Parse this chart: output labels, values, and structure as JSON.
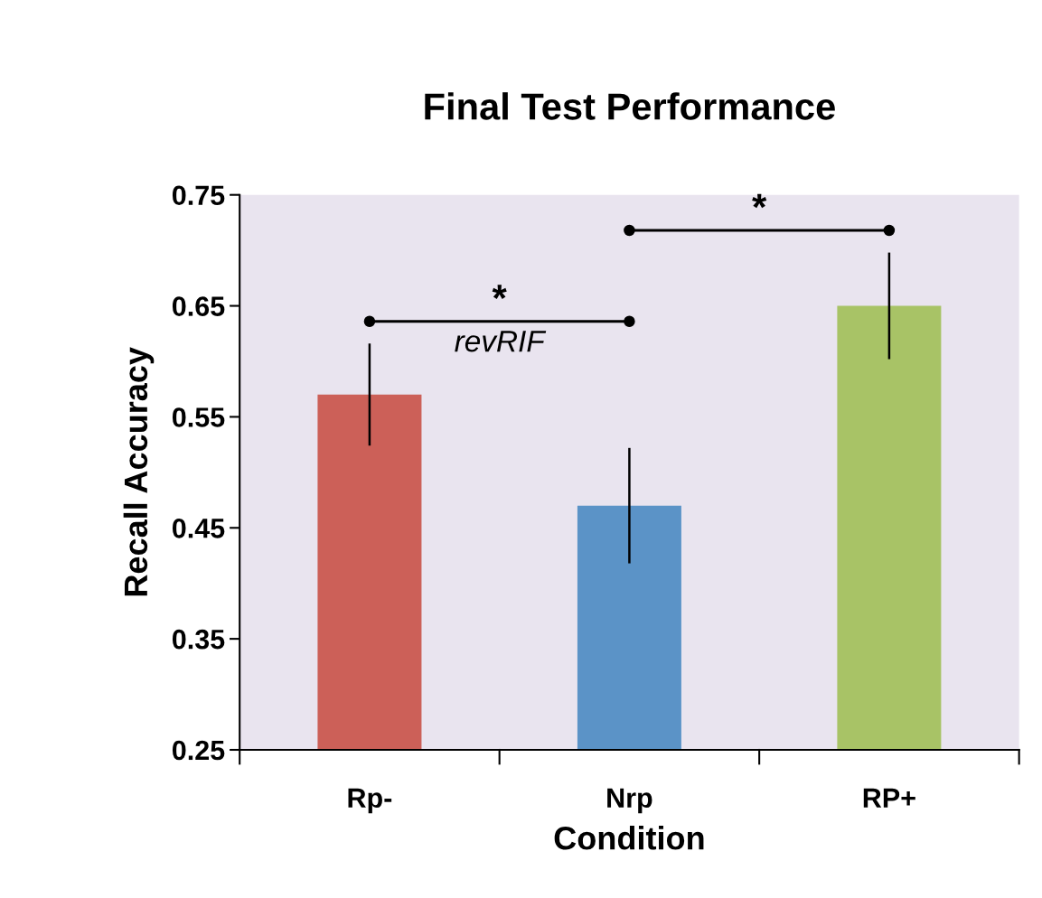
{
  "chart_data": {
    "type": "bar",
    "title": "Final Test Performance",
    "xlabel": "Condition",
    "ylabel": "Recall Accuracy",
    "categories": [
      "Rp-",
      "Nrp",
      "RP+"
    ],
    "values": [
      0.57,
      0.47,
      0.65
    ],
    "colors": [
      "#cc6058",
      "#5b93c7",
      "#a8c366"
    ],
    "errors": [
      0.046,
      0.052,
      0.048
    ],
    "ylim": [
      0.25,
      0.75
    ],
    "yticks": [
      0.25,
      0.35,
      0.45,
      0.55,
      0.65,
      0.75
    ],
    "annotations": [
      "*",
      "revRIF",
      "*"
    ],
    "grid": false
  }
}
